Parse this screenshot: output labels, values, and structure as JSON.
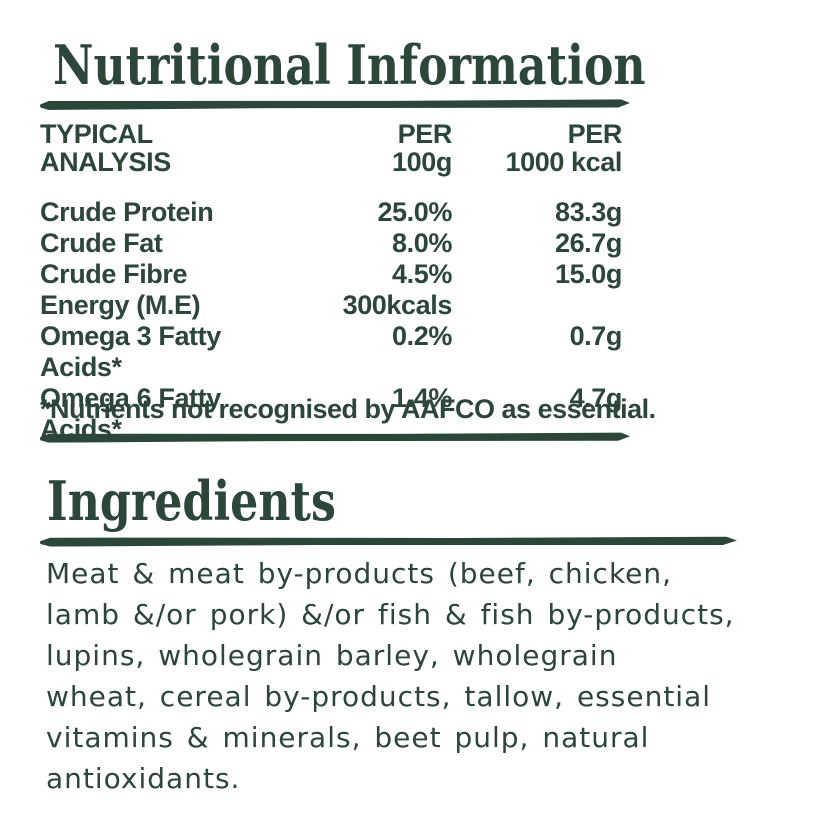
{
  "colors": {
    "text_green": "#2c463a",
    "background": "#ffffff"
  },
  "nutrition": {
    "title": "Nutritional Information",
    "table": {
      "headers": {
        "col1": "TYPICAL\nANALYSIS",
        "col2": "PER\n100g",
        "col3": "PER\n1000 kcal"
      },
      "rows": [
        {
          "label": "Crude Protein",
          "per_100g": "25.0%",
          "per_1000kcal": "83.3g"
        },
        {
          "label": "Crude Fat",
          "per_100g": "8.0%",
          "per_1000kcal": "26.7g"
        },
        {
          "label": "Crude Fibre",
          "per_100g": "4.5%",
          "per_1000kcal": "15.0g"
        },
        {
          "label": "Energy (M.E)",
          "per_100g": "300kcals",
          "per_1000kcal": ""
        },
        {
          "label": "Omega 3 Fatty Acids*",
          "per_100g": "0.2%",
          "per_1000kcal": "0.7g"
        },
        {
          "label": "Omega 6 Fatty Acids*",
          "per_100g": "1.4%",
          "per_1000kcal": "4.7g"
        }
      ]
    },
    "footnote": "*Nutrients not recognised by AAFCO as essential."
  },
  "ingredients": {
    "title": "Ingredients",
    "lines": [
      "Meat & meat by-products (beef, chicken,",
      "lamb &/or pork) &/or fish & fish by-products,",
      "lupins, wholegrain barley, wholegrain",
      "wheat, cereal by-products, tallow, essential",
      "vitamins & minerals, beet pulp, natural",
      "antioxidants."
    ]
  }
}
